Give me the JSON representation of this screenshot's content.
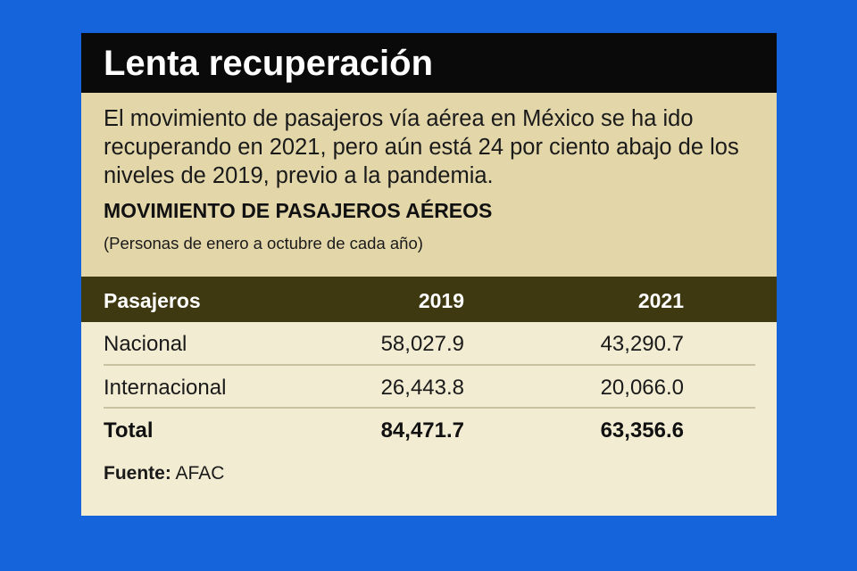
{
  "title": "Lenta recuperación",
  "description": "El movimiento de pasajeros vía aérea en México se ha ido recuperando en 2021, pero aún está 24 por ciento abajo de los niveles de 2019, previo a la pandemia.",
  "chart_data": {
    "type": "table",
    "title": "MOVIMIENTO DE PASAJEROS AÉREOS",
    "subtitle": "(Personas de enero a octubre de cada año)",
    "columns": [
      "Pasajeros",
      "2019",
      "2021"
    ],
    "rows": [
      [
        "Nacional",
        "58,027.9",
        "43,290.7"
      ],
      [
        "Internacional",
        "26,443.8",
        "20,066.0"
      ],
      [
        "Total",
        "84,471.7",
        "63,356.6"
      ]
    ]
  },
  "source": {
    "label": "Fuente:",
    "value": "AFAC"
  },
  "colors": {
    "background": "#1664dc",
    "title_bar": "#0a0a0a",
    "intro_area": "#e3d7aa",
    "table_header": "#3f3912",
    "table_body": "#f2ecd2"
  }
}
